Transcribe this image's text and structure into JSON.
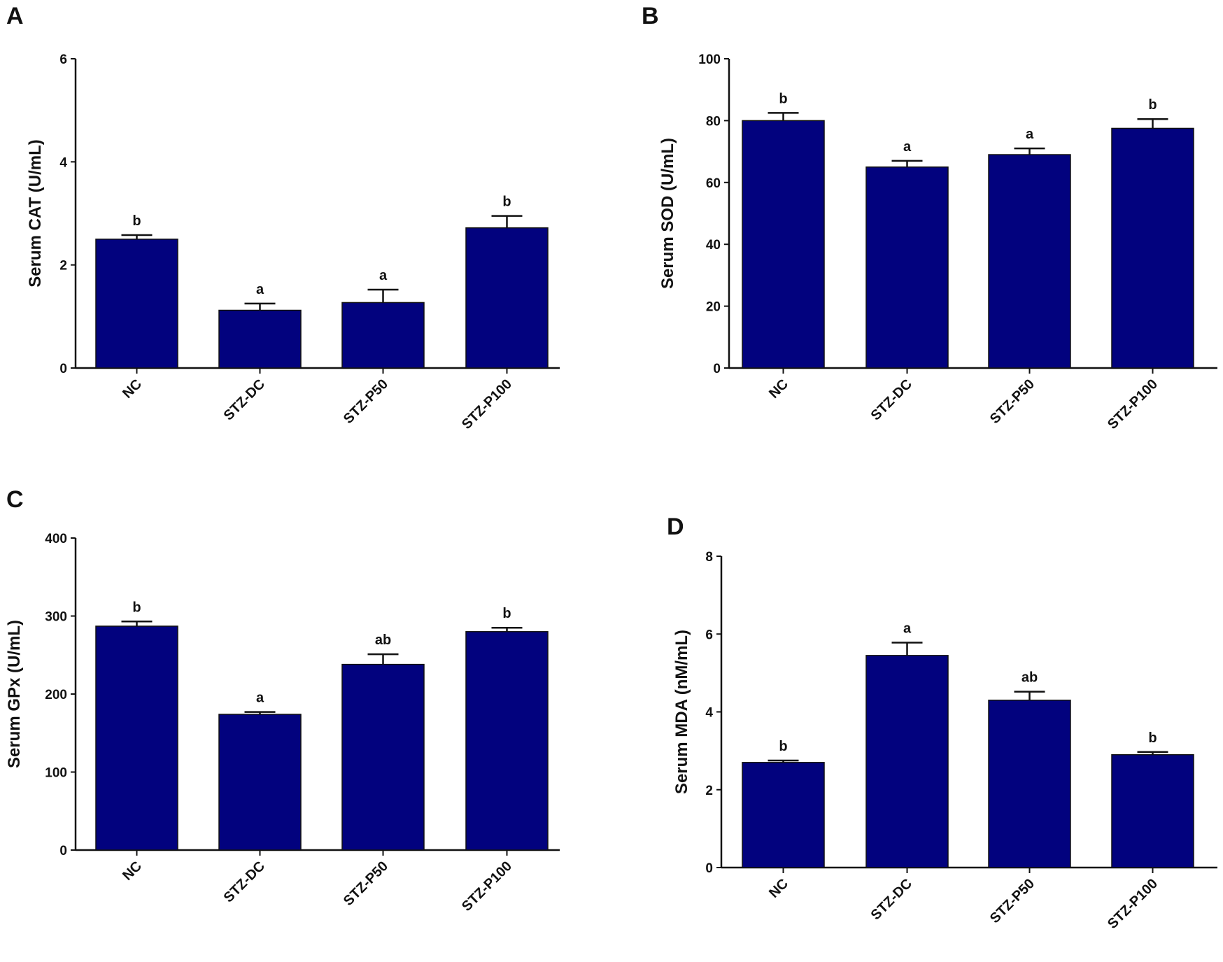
{
  "bar_color": "#02027e",
  "chart_data": [
    {
      "panel": "A",
      "type": "bar",
      "categories": [
        "NC",
        "STZ-DC",
        "STZ-P50",
        "STZ-P100"
      ],
      "values": [
        2.5,
        1.12,
        1.27,
        2.72
      ],
      "error_upper": [
        2.58,
        1.25,
        1.52,
        2.95
      ],
      "significance": [
        "b",
        "a",
        "a",
        "b"
      ],
      "ylabel": "Serum CAT (U/mL)",
      "ylim": [
        0,
        6
      ],
      "yticks": [
        0,
        2,
        4,
        6
      ],
      "grid": false
    },
    {
      "panel": "B",
      "type": "bar",
      "categories": [
        "NC",
        "STZ-DC",
        "STZ-P50",
        "STZ-P100"
      ],
      "values": [
        80,
        65,
        69,
        77.5
      ],
      "error_upper": [
        82.5,
        67,
        71,
        80.5
      ],
      "significance": [
        "b",
        "a",
        "a",
        "b"
      ],
      "ylabel": "Serum SOD (U/mL)",
      "ylim": [
        0,
        100
      ],
      "yticks": [
        0,
        20,
        40,
        60,
        80,
        100
      ],
      "grid": false
    },
    {
      "panel": "C",
      "type": "bar",
      "categories": [
        "NC",
        "STZ-DC",
        "STZ-P50",
        "STZ-P100"
      ],
      "values": [
        287,
        174,
        238,
        280
      ],
      "error_upper": [
        293,
        177,
        251,
        285
      ],
      "significance": [
        "b",
        "a",
        "ab",
        "b"
      ],
      "ylabel": "Serum GPx (U/mL)",
      "ylim": [
        0,
        400
      ],
      "yticks": [
        0,
        100,
        200,
        300,
        400
      ],
      "grid": false
    },
    {
      "panel": "D",
      "type": "bar",
      "categories": [
        "NC",
        "STZ-DC",
        "STZ-P50",
        "STZ-P100"
      ],
      "values": [
        2.7,
        5.45,
        4.3,
        2.9
      ],
      "error_upper": [
        2.75,
        5.78,
        4.52,
        2.97
      ],
      "significance": [
        "b",
        "a",
        "ab",
        "b"
      ],
      "ylabel": "Serum MDA (nM/mL)",
      "ylim": [
        0,
        8
      ],
      "yticks": [
        0,
        2,
        4,
        6,
        8
      ],
      "grid": false
    }
  ]
}
